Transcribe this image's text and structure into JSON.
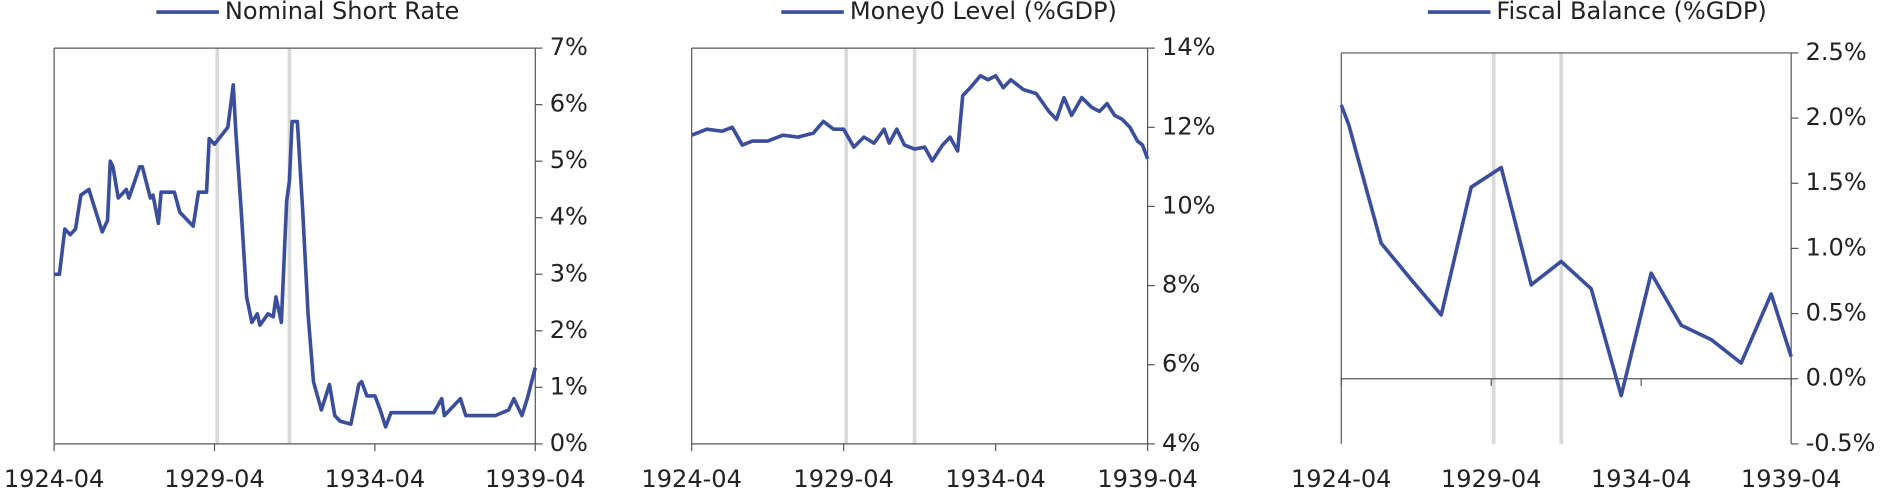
{
  "chart_data": [
    {
      "type": "line",
      "series": [
        {
          "name": "Nominal Short Rate",
          "color": "#3a4e9c",
          "x": [
            "1924-04",
            "1924-06",
            "1924-08",
            "1924-10",
            "1924-12",
            "1925-02",
            "1925-05",
            "1925-07",
            "1925-10",
            "1925-12",
            "1926-01",
            "1926-02",
            "1926-04",
            "1926-07",
            "1926-08",
            "1926-12",
            "1927-01",
            "1927-04",
            "1927-05",
            "1927-07",
            "1927-08",
            "1928-01",
            "1928-03",
            "1928-08",
            "1928-10",
            "1928-12",
            "1929-01",
            "1929-02",
            "1929-04",
            "1929-09",
            "1929-11",
            "1929-12",
            "1930-02",
            "1930-04",
            "1930-06",
            "1930-08",
            "1930-09",
            "1930-12",
            "1931-02",
            "1931-03",
            "1931-05",
            "1931-07",
            "1931-08",
            "1931-09",
            "1931-11",
            "1932-01",
            "1932-03",
            "1932-05",
            "1932-08",
            "1932-11",
            "1933-01",
            "1933-03",
            "1933-07",
            "1933-10",
            "1933-11",
            "1934-01",
            "1934-04",
            "1934-06",
            "1934-08",
            "1934-10",
            "1935-06",
            "1936-02",
            "1936-05",
            "1936-06",
            "1936-12",
            "1937-02",
            "1938-01",
            "1938-06",
            "1938-08",
            "1938-11",
            "1939-01",
            "1939-04"
          ],
          "values": [
            3.0,
            3.0,
            3.8,
            3.7,
            3.8,
            4.4,
            4.5,
            4.2,
            3.75,
            3.95,
            5.0,
            4.9,
            4.35,
            4.5,
            4.35,
            4.9,
            4.9,
            4.35,
            4.4,
            3.9,
            4.45,
            4.45,
            4.1,
            3.85,
            4.45,
            4.45,
            4.45,
            5.4,
            5.3,
            5.6,
            6.35,
            5.5,
            4.1,
            2.6,
            2.15,
            2.3,
            2.1,
            2.3,
            2.25,
            2.6,
            2.15,
            4.3,
            4.65,
            5.7,
            5.7,
            4.1,
            2.3,
            1.1,
            0.6,
            1.05,
            0.5,
            0.4,
            0.35,
            1.05,
            1.1,
            0.85,
            0.85,
            0.6,
            0.3,
            0.55,
            0.55,
            0.55,
            0.8,
            0.5,
            0.8,
            0.5,
            0.5,
            0.6,
            0.8,
            0.5,
            0.8,
            1.35
          ]
        }
      ],
      "xlim": [
        "1924-04",
        "1939-04"
      ],
      "xticks": [
        "1924-04",
        "1929-04",
        "1934-04",
        "1939-04"
      ],
      "ylim": [
        0,
        7
      ],
      "yticks": [
        {
          "value": 0,
          "label": "0%"
        },
        {
          "value": 1,
          "label": "1%"
        },
        {
          "value": 2,
          "label": "2%"
        },
        {
          "value": 3,
          "label": "3%"
        },
        {
          "value": 4,
          "label": "4%"
        },
        {
          "value": 5,
          "label": "5%"
        },
        {
          "value": 6,
          "label": "6%"
        },
        {
          "value": 7,
          "label": "7%"
        }
      ],
      "markers": [
        "1929-05",
        "1931-08"
      ],
      "marker_color": "#d9d9d9"
    },
    {
      "type": "line",
      "series": [
        {
          "name": "Money0 Level (%GDP)",
          "color": "#3a4e9c",
          "x": [
            "1924-04",
            "1924-10",
            "1925-04",
            "1925-08",
            "1925-12",
            "1926-04",
            "1926-10",
            "1927-04",
            "1927-10",
            "1928-04",
            "1928-08",
            "1928-12",
            "1929-04",
            "1929-08",
            "1929-12",
            "1930-04",
            "1930-08",
            "1930-10",
            "1931-01",
            "1931-04",
            "1931-08",
            "1931-12",
            "1932-03",
            "1932-07",
            "1932-10",
            "1933-01",
            "1933-03",
            "1933-06",
            "1933-10",
            "1934-01",
            "1934-04",
            "1934-07",
            "1934-10",
            "1935-03",
            "1935-08",
            "1936-01",
            "1936-04",
            "1936-07",
            "1936-10",
            "1937-02",
            "1937-06",
            "1937-09",
            "1937-12",
            "1938-03",
            "1938-06",
            "1938-09",
            "1938-12",
            "1939-02",
            "1939-04"
          ],
          "values": [
            11.8,
            11.95,
            11.9,
            12.0,
            11.55,
            11.65,
            11.65,
            11.8,
            11.75,
            11.85,
            12.15,
            11.95,
            11.95,
            11.5,
            11.75,
            11.6,
            11.95,
            11.6,
            11.95,
            11.55,
            11.45,
            11.5,
            11.15,
            11.55,
            11.75,
            11.4,
            12.8,
            13.0,
            13.3,
            13.2,
            13.3,
            13.0,
            13.2,
            12.95,
            12.85,
            12.4,
            12.2,
            12.75,
            12.3,
            12.75,
            12.5,
            12.4,
            12.6,
            12.3,
            12.2,
            12.0,
            11.65,
            11.55,
            11.2
          ]
        }
      ],
      "xlim": [
        "1924-04",
        "1939-04"
      ],
      "xticks": [
        "1924-04",
        "1929-04",
        "1934-04",
        "1939-04"
      ],
      "ylim": [
        4,
        14
      ],
      "yticks": [
        {
          "value": 4,
          "label": "4%"
        },
        {
          "value": 6,
          "label": "6%"
        },
        {
          "value": 8,
          "label": "8%"
        },
        {
          "value": 10,
          "label": "10%"
        },
        {
          "value": 12,
          "label": "12%"
        },
        {
          "value": 14,
          "label": "14%"
        }
      ],
      "markers": [
        "1929-05",
        "1931-08"
      ],
      "marker_color": "#d9d9d9"
    },
    {
      "type": "line",
      "series": [
        {
          "name": "Fiscal Balance (%GDP)",
          "color": "#3a4e9c",
          "x": [
            "1924-04",
            "1924-07",
            "1925-08",
            "1926-08",
            "1927-08",
            "1928-08",
            "1929-08",
            "1930-08",
            "1931-08",
            "1932-08",
            "1933-08",
            "1934-08",
            "1935-08",
            "1936-08",
            "1937-08",
            "1938-08",
            "1939-04"
          ],
          "values": [
            2.1,
            1.95,
            1.04,
            0.76,
            0.49,
            1.47,
            1.62,
            0.72,
            0.9,
            0.69,
            -0.13,
            0.81,
            0.41,
            0.3,
            0.12,
            0.65,
            0.17
          ]
        }
      ],
      "xlim": [
        "1924-04",
        "1939-04"
      ],
      "xticks": [
        "1924-04",
        "1929-04",
        "1934-04",
        "1939-04"
      ],
      "ylim": [
        -0.5,
        2.5
      ],
      "yticks": [
        {
          "value": -0.5,
          "label": "-0.5%"
        },
        {
          "value": 0,
          "label": "0.0%"
        },
        {
          "value": 0.5,
          "label": "0.5%"
        },
        {
          "value": 1,
          "label": "1.0%"
        },
        {
          "value": 1.5,
          "label": "1.5%"
        },
        {
          "value": 2,
          "label": "2.0%"
        },
        {
          "value": 2.5,
          "label": "2.5%"
        }
      ],
      "markers": [
        "1929-05",
        "1931-08"
      ],
      "marker_color": "#d9d9d9",
      "zero_line": true
    }
  ]
}
